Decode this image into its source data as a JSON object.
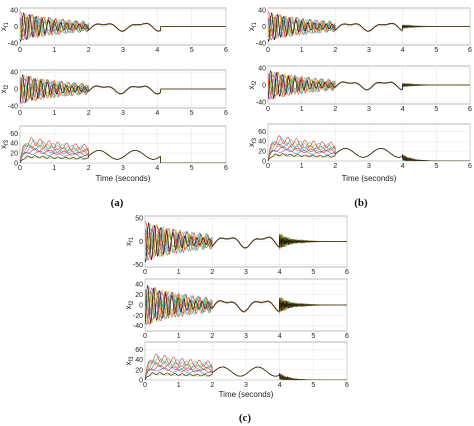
{
  "colors": [
    "#1f77b4",
    "#e41a1c",
    "#9b30d9",
    "#2ca02c",
    "#ff7f0e",
    "#17becf",
    "#d62728",
    "#bcbd22",
    "#000000"
  ],
  "chart_data": [
    {
      "type": "line",
      "panel_label": "(a)",
      "xlabel": "Time (seconds)",
      "xlim": [
        0,
        6
      ],
      "xticks": [
        "0",
        "1",
        "2",
        "3",
        "4",
        "5",
        "6"
      ],
      "settle_time": 4.1,
      "subplots": [
        {
          "ylabel": "x",
          "ylabel_sub": "f1",
          "ylim": [
            -45,
            45
          ],
          "yticks": [
            "40",
            "0",
            "-40"
          ],
          "style": "osc"
        },
        {
          "ylabel": "x",
          "ylabel_sub": "f2",
          "ylim": [
            -45,
            45
          ],
          "yticks": [
            "40",
            "0",
            "-40"
          ],
          "style": "osc"
        },
        {
          "ylabel": "x",
          "ylabel_sub": "f3",
          "ylim": [
            0,
            75
          ],
          "yticks": [
            "60",
            "40",
            "20",
            "0"
          ],
          "style": "pos"
        }
      ]
    },
    {
      "type": "line",
      "panel_label": "(b)",
      "xlabel": "Time (seconds)",
      "xlim": [
        0,
        6
      ],
      "xticks": [
        "0",
        "1",
        "2",
        "3",
        "4",
        "5",
        "6"
      ],
      "settle_time": 4.0,
      "subplots": [
        {
          "ylabel": "x",
          "ylabel_sub": "f1",
          "ylim": [
            -45,
            45
          ],
          "yticks": [
            "40",
            "0",
            "-40"
          ],
          "style": "osc"
        },
        {
          "ylabel": "x",
          "ylabel_sub": "f2",
          "ylim": [
            -45,
            45
          ],
          "yticks": [
            "40",
            "0",
            "-40"
          ],
          "style": "osc"
        },
        {
          "ylabel": "x",
          "ylabel_sub": "f3",
          "ylim": [
            0,
            75
          ],
          "yticks": [
            "60",
            "40",
            "20",
            "0"
          ],
          "style": "pos"
        }
      ]
    },
    {
      "type": "line",
      "panel_label": "(c)",
      "xlabel": "Time (seconds)",
      "xlim": [
        0,
        6
      ],
      "xticks": [
        "0",
        "1",
        "2",
        "3",
        "4",
        "5",
        "6"
      ],
      "settle_time": 4.0,
      "subplots": [
        {
          "ylabel": "x",
          "ylabel_sub": "f1",
          "ylim": [
            -55,
            55
          ],
          "yticks": [
            "50",
            "0",
            "-50"
          ],
          "style": "osc"
        },
        {
          "ylabel": "x",
          "ylabel_sub": "f2",
          "ylim": [
            -50,
            50
          ],
          "yticks": [
            "40",
            "20",
            "0",
            "-20",
            "-40"
          ],
          "style": "osc"
        },
        {
          "ylabel": "x",
          "ylabel_sub": "f3",
          "ylim": [
            0,
            75
          ],
          "yticks": [
            "60",
            "40",
            "20",
            "0"
          ],
          "style": "pos"
        }
      ]
    }
  ]
}
